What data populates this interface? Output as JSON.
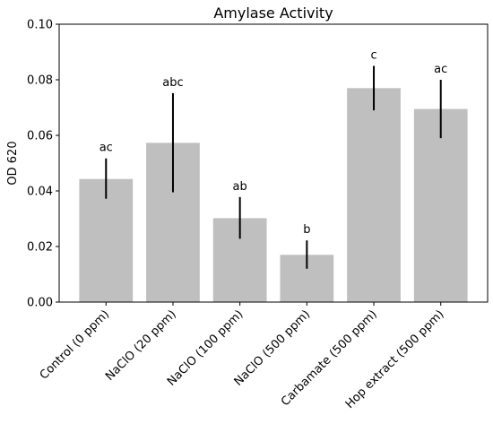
{
  "chart_data": {
    "type": "bar",
    "title": "Amylase Activity",
    "xlabel": "",
    "ylabel": "OD 620",
    "ylim": [
      0,
      0.1
    ],
    "yticks": [
      "0.00",
      "0.02",
      "0.04",
      "0.06",
      "0.08",
      "0.10"
    ],
    "grid": false,
    "bar_color": "#bfbfbf",
    "categories": [
      "Control (0 ppm)",
      "NaClO (20 ppm)",
      "NaClO (100 ppm)",
      "NaClO (500 ppm)",
      "Carbamate (500 ppm)",
      "Hop extract (500 ppm)"
    ],
    "values": [
      0.0443,
      0.0573,
      0.0302,
      0.017,
      0.077,
      0.0695
    ],
    "error_low": [
      0.0372,
      0.0395,
      0.0228,
      0.012,
      0.069,
      0.059
    ],
    "error_high": [
      0.0517,
      0.0752,
      0.0378,
      0.0222,
      0.085,
      0.08
    ],
    "annotations": [
      "ac",
      "abc",
      "ab",
      "b",
      "c",
      "ac"
    ]
  }
}
